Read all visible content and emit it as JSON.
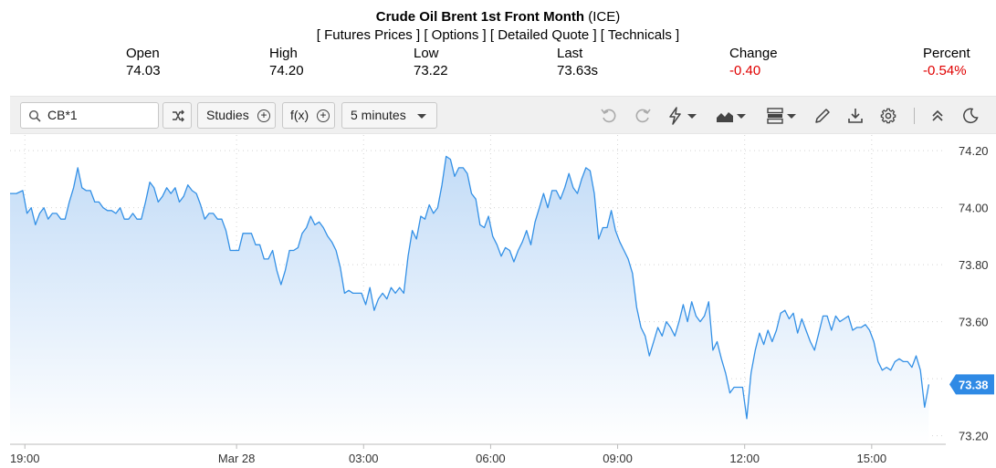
{
  "header": {
    "title_bold": "Crude Oil Brent 1st Front Month",
    "title_suffix": " (ICE)",
    "links": [
      "[ Futures Prices ]",
      "[ Options ]",
      "[ Detailed Quote ]",
      "[ Technicals ]"
    ]
  },
  "stats": [
    {
      "label": "Open",
      "value": "74.03",
      "negative": false
    },
    {
      "label": "High",
      "value": "74.20",
      "negative": false
    },
    {
      "label": "Low",
      "value": "73.22",
      "negative": false
    },
    {
      "label": "Last",
      "value": "73.63s",
      "negative": false
    },
    {
      "label": "Change",
      "value": "-0.40",
      "negative": true
    },
    {
      "label": "Percent",
      "value": "-0.54%",
      "negative": true
    }
  ],
  "toolbar": {
    "symbol": "CB*1",
    "studies_label": "Studies",
    "fx_label": "f(x)",
    "interval_label": "5 minutes",
    "icons": [
      "undo-icon",
      "redo-icon",
      "lightning-icon",
      "area-chart-icon",
      "layout-icon",
      "pencil-icon",
      "download-icon",
      "gear-icon",
      "collapse-icon",
      "moon-icon"
    ]
  },
  "chart_data": {
    "type": "area",
    "title": "",
    "xlabel": "",
    "ylabel": "",
    "ylim": [
      73.17,
      74.255
    ],
    "y_ticks": [
      "74.20",
      "74.00",
      "73.80",
      "73.60",
      "73.40",
      "73.20"
    ],
    "x_tick_labels": [
      "19:00",
      "Mar 28",
      "03:00",
      "06:00",
      "09:00",
      "12:00",
      "15:00"
    ],
    "x_tick_times": [
      19.0,
      24.0,
      27.0,
      30.0,
      33.0,
      36.0,
      39.0
    ],
    "x_range_hours": [
      18.65,
      40.75
    ],
    "current_value": "73.38",
    "colors": {
      "line": "#3390e6",
      "fill_top": "#c3dcf7",
      "fill_bottom": "#ffffff",
      "badge": "#2f8ae5"
    },
    "series": [
      {
        "points": [
          [
            18.65,
            74.05
          ],
          [
            18.8,
            74.05
          ],
          [
            18.95,
            74.06
          ],
          [
            19.05,
            73.98
          ],
          [
            19.15,
            74.0
          ],
          [
            19.25,
            73.94
          ],
          [
            19.35,
            73.98
          ],
          [
            19.45,
            74.0
          ],
          [
            19.55,
            73.96
          ],
          [
            19.65,
            73.98
          ],
          [
            19.75,
            73.98
          ],
          [
            19.85,
            73.96
          ],
          [
            19.95,
            73.96
          ],
          [
            20.05,
            74.02
          ],
          [
            20.15,
            74.07
          ],
          [
            20.25,
            74.14
          ],
          [
            20.35,
            74.07
          ],
          [
            20.45,
            74.06
          ],
          [
            20.55,
            74.06
          ],
          [
            20.65,
            74.02
          ],
          [
            20.75,
            74.02
          ],
          [
            20.85,
            74.0
          ],
          [
            20.95,
            73.99
          ],
          [
            21.05,
            73.99
          ],
          [
            21.15,
            73.98
          ],
          [
            21.25,
            74.0
          ],
          [
            21.35,
            73.96
          ],
          [
            21.45,
            73.96
          ],
          [
            21.55,
            73.98
          ],
          [
            21.65,
            73.96
          ],
          [
            21.75,
            73.96
          ],
          [
            21.85,
            74.02
          ],
          [
            21.95,
            74.09
          ],
          [
            22.05,
            74.07
          ],
          [
            22.15,
            74.02
          ],
          [
            22.25,
            74.04
          ],
          [
            22.35,
            74.07
          ],
          [
            22.45,
            74.05
          ],
          [
            22.55,
            74.07
          ],
          [
            22.65,
            74.02
          ],
          [
            22.75,
            74.04
          ],
          [
            22.85,
            74.08
          ],
          [
            22.95,
            74.06
          ],
          [
            23.05,
            74.05
          ],
          [
            23.15,
            74.01
          ],
          [
            23.25,
            73.96
          ],
          [
            23.35,
            73.98
          ],
          [
            23.45,
            73.98
          ],
          [
            23.55,
            73.96
          ],
          [
            23.65,
            73.96
          ],
          [
            23.75,
            73.92
          ],
          [
            23.85,
            73.85
          ],
          [
            23.95,
            73.85
          ],
          [
            24.05,
            73.85
          ],
          [
            24.15,
            73.91
          ],
          [
            24.25,
            73.91
          ],
          [
            24.35,
            73.91
          ],
          [
            24.45,
            73.87
          ],
          [
            24.55,
            73.87
          ],
          [
            24.65,
            73.82
          ],
          [
            24.75,
            73.82
          ],
          [
            24.85,
            73.85
          ],
          [
            24.95,
            73.78
          ],
          [
            25.05,
            73.73
          ],
          [
            25.15,
            73.78
          ],
          [
            25.25,
            73.85
          ],
          [
            25.35,
            73.85
          ],
          [
            25.45,
            73.86
          ],
          [
            25.55,
            73.91
          ],
          [
            25.65,
            73.93
          ],
          [
            25.75,
            73.97
          ],
          [
            25.85,
            73.94
          ],
          [
            25.95,
            73.95
          ],
          [
            26.05,
            73.93
          ],
          [
            26.15,
            73.9
          ],
          [
            26.25,
            73.88
          ],
          [
            26.35,
            73.85
          ],
          [
            26.45,
            73.79
          ],
          [
            26.55,
            73.7
          ],
          [
            26.65,
            73.71
          ],
          [
            26.75,
            73.7
          ],
          [
            26.85,
            73.7
          ],
          [
            26.95,
            73.7
          ],
          [
            27.05,
            73.66
          ],
          [
            27.15,
            73.72
          ],
          [
            27.25,
            73.64
          ],
          [
            27.35,
            73.68
          ],
          [
            27.45,
            73.7
          ],
          [
            27.55,
            73.68
          ],
          [
            27.65,
            73.72
          ],
          [
            27.75,
            73.7
          ],
          [
            27.85,
            73.72
          ],
          [
            27.95,
            73.7
          ],
          [
            28.05,
            73.83
          ],
          [
            28.15,
            73.92
          ],
          [
            28.25,
            73.89
          ],
          [
            28.35,
            73.97
          ],
          [
            28.45,
            73.96
          ],
          [
            28.55,
            74.01
          ],
          [
            28.65,
            73.98
          ],
          [
            28.75,
            74.0
          ],
          [
            28.85,
            74.08
          ],
          [
            28.95,
            74.18
          ],
          [
            29.05,
            74.17
          ],
          [
            29.15,
            74.11
          ],
          [
            29.25,
            74.14
          ],
          [
            29.35,
            74.14
          ],
          [
            29.45,
            74.12
          ],
          [
            29.55,
            74.05
          ],
          [
            29.65,
            74.03
          ],
          [
            29.75,
            73.94
          ],
          [
            29.85,
            73.93
          ],
          [
            29.95,
            73.97
          ],
          [
            30.05,
            73.9
          ],
          [
            30.15,
            73.87
          ],
          [
            30.25,
            73.83
          ],
          [
            30.35,
            73.86
          ],
          [
            30.45,
            73.85
          ],
          [
            30.55,
            73.81
          ],
          [
            30.65,
            73.85
          ],
          [
            30.75,
            73.88
          ],
          [
            30.85,
            73.92
          ],
          [
            30.95,
            73.87
          ],
          [
            31.05,
            73.95
          ],
          [
            31.15,
            74.0
          ],
          [
            31.25,
            74.05
          ],
          [
            31.35,
            74.0
          ],
          [
            31.45,
            74.06
          ],
          [
            31.55,
            74.06
          ],
          [
            31.65,
            74.03
          ],
          [
            31.75,
            74.07
          ],
          [
            31.85,
            74.12
          ],
          [
            31.95,
            74.07
          ],
          [
            32.05,
            74.05
          ],
          [
            32.15,
            74.1
          ],
          [
            32.25,
            74.14
          ],
          [
            32.35,
            74.13
          ],
          [
            32.45,
            74.05
          ],
          [
            32.55,
            73.89
          ],
          [
            32.65,
            73.93
          ],
          [
            32.75,
            73.93
          ],
          [
            32.85,
            73.99
          ],
          [
            32.95,
            73.92
          ],
          [
            33.05,
            73.88
          ],
          [
            33.15,
            73.85
          ],
          [
            33.25,
            73.82
          ],
          [
            33.35,
            73.77
          ],
          [
            33.45,
            73.65
          ],
          [
            33.55,
            73.58
          ],
          [
            33.65,
            73.55
          ],
          [
            33.75,
            73.48
          ],
          [
            33.85,
            73.53
          ],
          [
            33.95,
            73.58
          ],
          [
            34.05,
            73.55
          ],
          [
            34.15,
            73.6
          ],
          [
            34.25,
            73.58
          ],
          [
            34.35,
            73.55
          ],
          [
            34.45,
            73.6
          ],
          [
            34.55,
            73.66
          ],
          [
            34.65,
            73.6
          ],
          [
            34.75,
            73.67
          ],
          [
            34.85,
            73.62
          ],
          [
            34.95,
            73.6
          ],
          [
            35.05,
            73.62
          ],
          [
            35.15,
            73.67
          ],
          [
            35.25,
            73.5
          ],
          [
            35.35,
            73.53
          ],
          [
            35.45,
            73.47
          ],
          [
            35.55,
            73.42
          ],
          [
            35.65,
            73.35
          ],
          [
            35.75,
            73.37
          ],
          [
            35.85,
            73.37
          ],
          [
            35.95,
            73.37
          ],
          [
            36.05,
            73.26
          ],
          [
            36.15,
            73.42
          ],
          [
            36.25,
            73.5
          ],
          [
            36.35,
            73.56
          ],
          [
            36.45,
            73.52
          ],
          [
            36.55,
            73.57
          ],
          [
            36.65,
            73.53
          ],
          [
            36.75,
            73.57
          ],
          [
            36.85,
            73.63
          ],
          [
            36.95,
            73.64
          ],
          [
            37.05,
            73.61
          ],
          [
            37.15,
            73.63
          ],
          [
            37.25,
            73.56
          ],
          [
            37.35,
            73.61
          ],
          [
            37.45,
            73.57
          ],
          [
            37.55,
            73.53
          ],
          [
            37.65,
            73.5
          ],
          [
            37.75,
            73.56
          ],
          [
            37.85,
            73.62
          ],
          [
            37.95,
            73.62
          ],
          [
            38.05,
            73.57
          ],
          [
            38.15,
            73.62
          ],
          [
            38.25,
            73.6
          ],
          [
            38.35,
            73.61
          ],
          [
            38.45,
            73.62
          ],
          [
            38.55,
            73.57
          ],
          [
            38.65,
            73.58
          ],
          [
            38.75,
            73.58
          ],
          [
            38.85,
            73.59
          ],
          [
            38.95,
            73.57
          ],
          [
            39.05,
            73.53
          ],
          [
            39.15,
            73.46
          ],
          [
            39.25,
            73.43
          ],
          [
            39.35,
            73.44
          ],
          [
            39.45,
            73.43
          ],
          [
            39.55,
            73.46
          ],
          [
            39.65,
            73.47
          ],
          [
            39.75,
            73.46
          ],
          [
            39.85,
            73.46
          ],
          [
            39.95,
            73.44
          ],
          [
            40.05,
            73.48
          ],
          [
            40.15,
            73.43
          ],
          [
            40.25,
            73.3
          ],
          [
            40.35,
            73.38
          ]
        ]
      }
    ]
  }
}
